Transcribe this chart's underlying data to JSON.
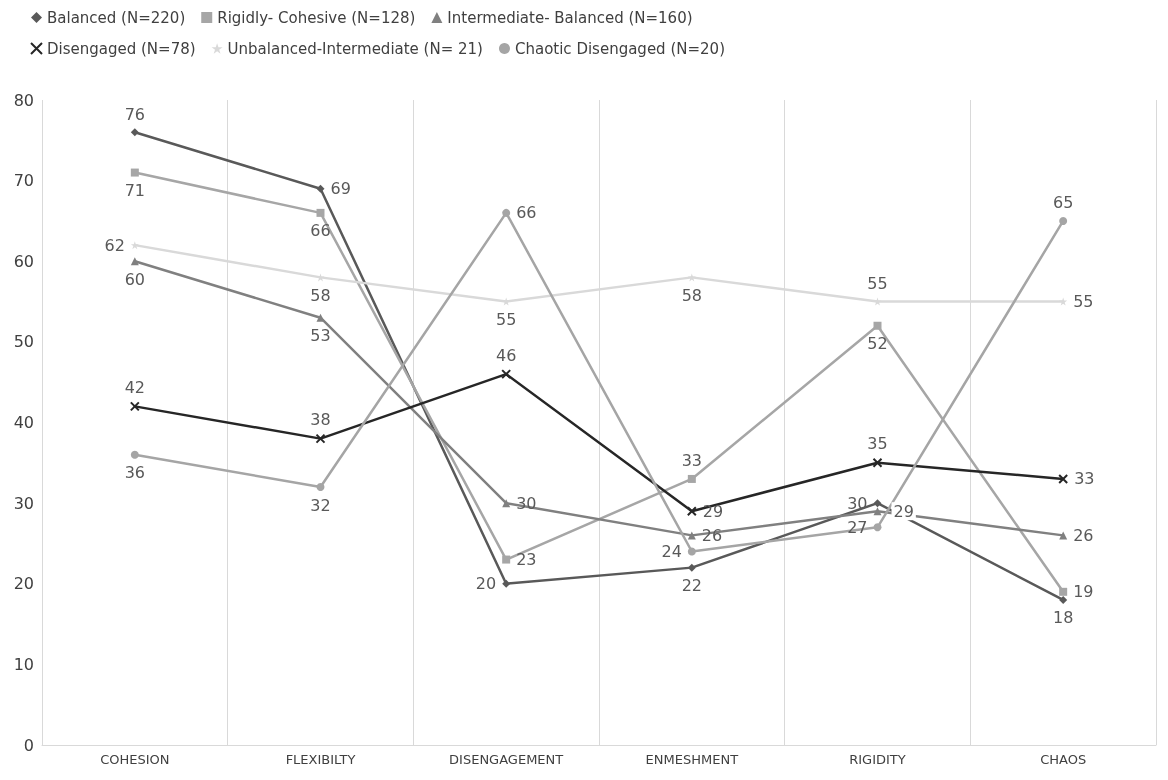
{
  "chart_data": {
    "type": "line",
    "categories": [
      "COHESION",
      "FLEXIBILTY",
      "DISENGAGEMENT",
      "ENMESHMENT",
      "RIGIDITY",
      "CHAOS"
    ],
    "series": [
      {
        "name": "Balanced (N=220)",
        "color": "#595959",
        "marker": "diamond",
        "values": [
          76,
          69,
          20,
          22,
          30,
          18
        ]
      },
      {
        "name": "Rigidly- Cohesive (N=128)",
        "color": "#a6a6a6",
        "marker": "square",
        "values": [
          71,
          66,
          23,
          33,
          52,
          19
        ]
      },
      {
        "name": "Intermediate- Balanced (N=160)",
        "color": "#808080",
        "marker": "triangle",
        "values": [
          60,
          53,
          30,
          26,
          29,
          26
        ]
      },
      {
        "name": "Disengaged (N=78)",
        "color": "#262626",
        "marker": "cross",
        "values": [
          42,
          38,
          46,
          29,
          35,
          33
        ]
      },
      {
        "name": "Unbalanced-Intermediate (N= 21)",
        "color": "#d9d9d9",
        "marker": "star",
        "values": [
          62,
          58,
          55,
          58,
          55,
          55
        ]
      },
      {
        "name": "Chaotic Disengaged (N=20)",
        "color": "#a5a5a5",
        "marker": "circle",
        "values": [
          36,
          32,
          66,
          24,
          27,
          65
        ]
      }
    ],
    "ylim": [
      0,
      80
    ],
    "yticks": [
      0,
      10,
      20,
      30,
      40,
      50,
      60,
      70,
      80
    ],
    "grid": "x",
    "legend": "top",
    "data_labels": true,
    "line_style": "solid"
  }
}
